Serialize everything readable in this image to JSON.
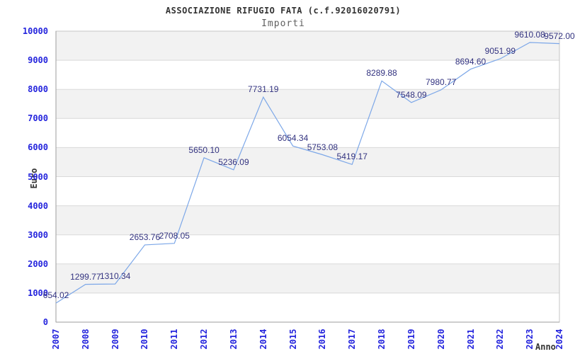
{
  "header": {
    "title": "ASSOCIAZIONE RIFUGIO FATA (c.f.92016020791)",
    "subtitle": "Importi"
  },
  "chart_data": {
    "type": "line",
    "title": "ASSOCIAZIONE RIFUGIO FATA (c.f.92016020791)",
    "subtitle": "Importi",
    "xlabel": "Anno",
    "ylabel": "Euro",
    "x": [
      "2007",
      "2008",
      "2009",
      "2010",
      "2011",
      "2012",
      "2013",
      "2014",
      "2015",
      "2016",
      "2017",
      "2018",
      "2019",
      "2020",
      "2021",
      "2022",
      "2023",
      "2024"
    ],
    "values": [
      654.02,
      1299.77,
      1310.34,
      2653.76,
      2708.05,
      5650.1,
      5236.09,
      7731.19,
      6054.34,
      5753.08,
      5419.17,
      8289.88,
      7548.09,
      7980.77,
      8694.6,
      9051.99,
      9610.08,
      9572.0
    ],
    "point_labels": [
      "654.02",
      "1299.77",
      "1310.34",
      "2653.76",
      "2708.05",
      "5650.10",
      "5236.09",
      "7731.19",
      "6054.34",
      "5753.08",
      "5419.17",
      "8289.88",
      "7548.09",
      "7980.77",
      "8694.60",
      "9051.99",
      "9610.08",
      "9572.00"
    ],
    "ylim": [
      0,
      10000
    ],
    "ytick_step": 1000,
    "yticks": [
      "0",
      "1000",
      "2000",
      "3000",
      "4000",
      "5000",
      "6000",
      "7000",
      "8000",
      "9000",
      "10000"
    ],
    "grid": true,
    "legend": null,
    "colors": {
      "line": "#7ca7e8",
      "point_label": "#333380",
      "tick_label": "#2424dd",
      "band": "#f2f2f2",
      "band_alt": "#ffffff",
      "gridline": "#d9d9d9",
      "plot_border": "#c5c5c5",
      "axis": "#9e9e9e",
      "title": "#333333",
      "subtitle": "#5f5f5f"
    }
  }
}
